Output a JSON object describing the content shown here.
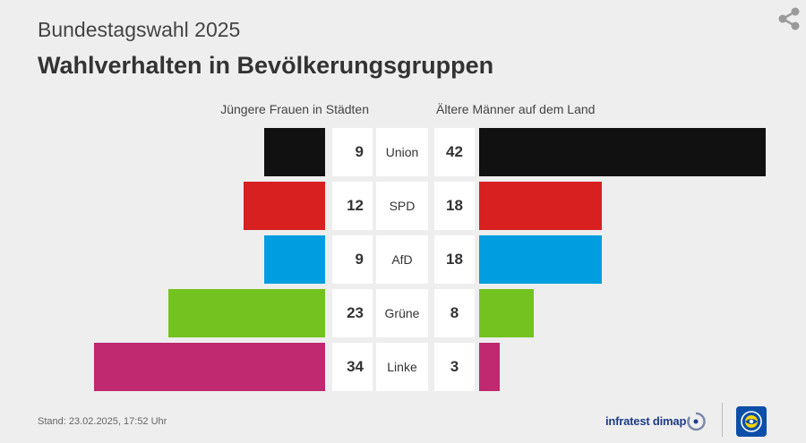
{
  "header": {
    "overline": "Bundestagswahl 2025",
    "title": "Wahlverhalten in Bevölkerungsgruppen"
  },
  "chart_data": {
    "type": "bar",
    "title": "Wahlverhalten in Bevölkerungsgruppen",
    "subtitle": "Bundestagswahl 2025",
    "categories": [
      "Union",
      "SPD",
      "AfD",
      "Grüne",
      "Linke"
    ],
    "series": [
      {
        "name": "Jüngere Frauen in Städten",
        "values": [
          9,
          12,
          9,
          23,
          34
        ]
      },
      {
        "name": "Ältere Männer auf dem Land",
        "values": [
          42,
          18,
          18,
          8,
          3
        ]
      }
    ],
    "colors": [
      "#111111",
      "#d7201f",
      "#009ee0",
      "#74c21f",
      "#c0286f"
    ],
    "orientation": "horizontal-butterfly",
    "grid": false,
    "xlim": [
      0,
      42
    ]
  },
  "footer": {
    "stand": "Stand:  23.02.2025, 17:52 Uhr",
    "source": "infratest dimap"
  },
  "icons": {
    "share": "share-icon",
    "source_logo": "infratest-dimap-logo-icon",
    "broadcaster_logo": "ard-logo-icon"
  }
}
